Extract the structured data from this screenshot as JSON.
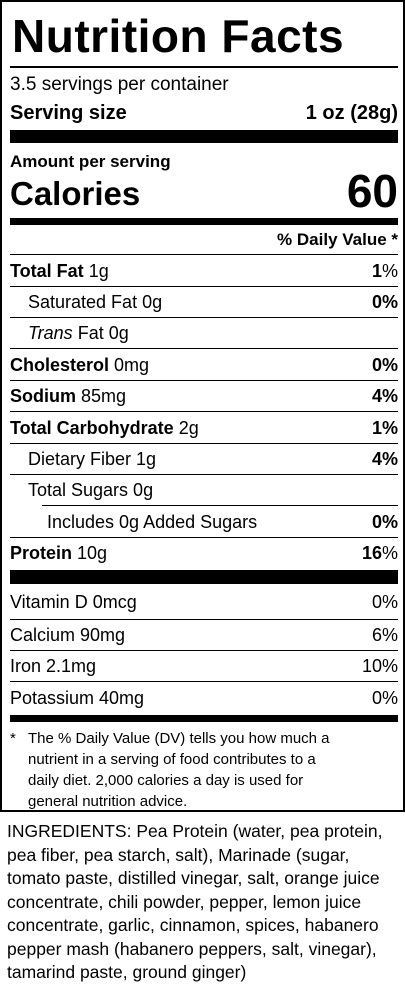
{
  "title": "Nutrition Facts",
  "servings": "3.5 servings per container",
  "serving_size_label": "Serving size",
  "serving_size_value": "1 oz (28g)",
  "amount_per_serving": "Amount per serving",
  "calories_label": "Calories",
  "calories_value": "60",
  "dv_header": "% Daily Value *",
  "nutrients": {
    "total_fat": {
      "label": "Total Fat",
      "amount": "1g",
      "dv": "1"
    },
    "saturated_fat": {
      "label": "Saturated Fat 0g",
      "dv": "0"
    },
    "trans_fat": {
      "label_italic": "Trans",
      "label_rest": "Fat 0g"
    },
    "cholesterol": {
      "label": "Cholesterol",
      "amount": "0mg",
      "dv": "0"
    },
    "sodium": {
      "label": "Sodium",
      "amount": "85mg",
      "dv": "4"
    },
    "total_carb": {
      "label": "Total Carbohydrate",
      "amount": "2g",
      "dv": "1"
    },
    "fiber": {
      "label": "Dietary Fiber 1g",
      "dv": "4"
    },
    "sugars": {
      "label": "Total Sugars 0g"
    },
    "added_sugars": {
      "label": "Includes 0g Added Sugars",
      "dv": "0"
    },
    "protein": {
      "label": "Protein",
      "amount": "10g",
      "dv": "16"
    }
  },
  "vitamins": {
    "vitamin_d": {
      "label": "Vitamin D 0mcg",
      "dv": "0%"
    },
    "calcium": {
      "label": "Calcium 90mg",
      "dv": "6%"
    },
    "iron": {
      "label": "Iron 2.1mg",
      "dv": "10%"
    },
    "potassium": {
      "label": "Potassium 40mg",
      "dv": "0%"
    }
  },
  "percent_sign": "%",
  "footnote_star": "*",
  "footnote_lines": [
    "The % Daily Value (DV) tells you how much a",
    "nutrient in a serving of food contributes to a",
    "daily diet. 2,000 calories a day is used for",
    "general nutrition advice."
  ],
  "ingredients": "INGREDIENTS: Pea Protein (water, pea protein, pea fiber, pea starch, salt), Marinade (sugar, tomato paste, distilled vinegar, salt, orange juice concentrate, chili powder, pepper, lemon juice concentrate, garlic, cinnamon, spices, habanero pepper mash (habanero peppers, salt, vinegar), tamarind paste, ground ginger)"
}
